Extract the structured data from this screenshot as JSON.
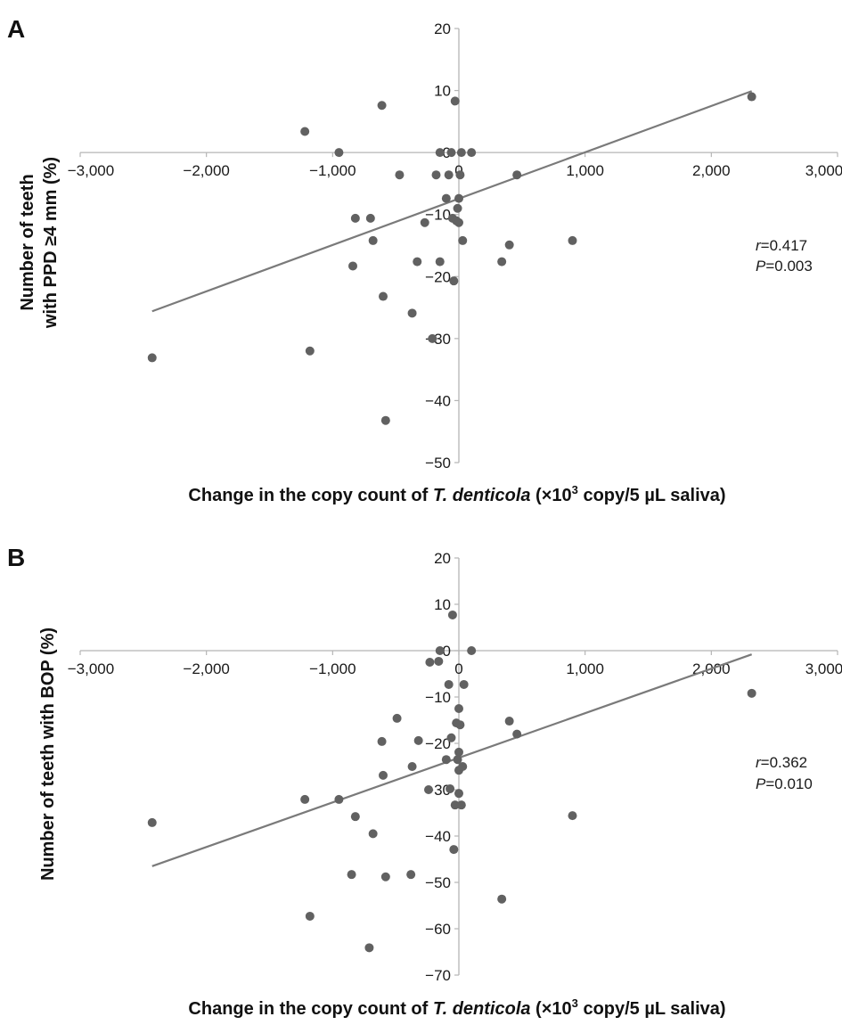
{
  "chart_data": [
    {
      "type": "scatter",
      "panel": "A",
      "xlabel_parts": [
        "Change in the copy count of ",
        "T. denticola",
        " (×10",
        "3",
        " copy/5 µL saliva)"
      ],
      "ylabel_lines": [
        "Number of teeth",
        "with PPD ≥4 mm (%)"
      ],
      "xlim": [
        -3000,
        3000
      ],
      "ylim": [
        -50,
        20
      ],
      "x_ticks": [
        -3000,
        -2000,
        -1000,
        0,
        1000,
        2000,
        3000
      ],
      "x_tick_labels": [
        "−3,000",
        "−2,000",
        "−1,000",
        "0",
        "1,000",
        "2,000",
        "3,000"
      ],
      "y_ticks": [
        20,
        10,
        0,
        -10,
        -20,
        -30,
        -40,
        -50
      ],
      "y_tick_labels": [
        "20",
        "10",
        "0",
        "−10",
        "−20",
        "−30",
        "−40",
        "−50"
      ],
      "grid": false,
      "annotation": {
        "r_label": "r",
        "r_value": "=0.417",
        "p_label": "P",
        "p_value": "=0.003"
      },
      "trendline": {
        "x": [
          -2430,
          2320
        ],
        "y": [
          -25.6,
          9.9
        ]
      },
      "points": [
        {
          "x": -2430,
          "y": -33.1
        },
        {
          "x": -1220,
          "y": 3.4
        },
        {
          "x": -1180,
          "y": -32.0
        },
        {
          "x": -950,
          "y": 0.0
        },
        {
          "x": -840,
          "y": -18.3
        },
        {
          "x": -820,
          "y": -10.6
        },
        {
          "x": -700,
          "y": -10.6
        },
        {
          "x": -680,
          "y": -14.2
        },
        {
          "x": -610,
          "y": 7.6
        },
        {
          "x": -600,
          "y": -23.2
        },
        {
          "x": -580,
          "y": -43.2
        },
        {
          "x": -470,
          "y": -3.6
        },
        {
          "x": -370,
          "y": -25.9
        },
        {
          "x": -330,
          "y": -17.6
        },
        {
          "x": -270,
          "y": -11.3
        },
        {
          "x": -210,
          "y": -30.0
        },
        {
          "x": -180,
          "y": -3.6
        },
        {
          "x": -150,
          "y": -17.6
        },
        {
          "x": -150,
          "y": 0.0
        },
        {
          "x": -100,
          "y": -7.4
        },
        {
          "x": -80,
          "y": -3.6
        },
        {
          "x": -60,
          "y": 0.0
        },
        {
          "x": -50,
          "y": -10.6
        },
        {
          "x": -40,
          "y": -20.7
        },
        {
          "x": -30,
          "y": 8.3
        },
        {
          "x": -20,
          "y": -11.0
        },
        {
          "x": -10,
          "y": -9.0
        },
        {
          "x": 0,
          "y": -7.4
        },
        {
          "x": 0,
          "y": -11.3
        },
        {
          "x": 10,
          "y": -3.6
        },
        {
          "x": 20,
          "y": 0.0
        },
        {
          "x": 30,
          "y": -14.2
        },
        {
          "x": 100,
          "y": 0.0
        },
        {
          "x": 340,
          "y": -17.6
        },
        {
          "x": 400,
          "y": -14.9
        },
        {
          "x": 460,
          "y": -3.6
        },
        {
          "x": 900,
          "y": -14.2
        },
        {
          "x": 2320,
          "y": 9.0
        }
      ]
    },
    {
      "type": "scatter",
      "panel": "B",
      "xlabel_parts": [
        "Change in the copy count of ",
        "T. denticola",
        " (×10",
        "3",
        " copy/5 µL saliva)"
      ],
      "ylabel_lines": [
        "Number of teeth with BOP (%)"
      ],
      "xlim": [
        -3000,
        3000
      ],
      "ylim": [
        -70,
        20
      ],
      "x_ticks": [
        -3000,
        -2000,
        -1000,
        0,
        1000,
        2000,
        3000
      ],
      "x_tick_labels": [
        "−3,000",
        "−2,000",
        "−1,000",
        "0",
        "1,000",
        "2,000",
        "3,000"
      ],
      "y_ticks": [
        20,
        10,
        0,
        -10,
        -20,
        -30,
        -40,
        -50,
        -60,
        -70
      ],
      "y_tick_labels": [
        "20",
        "10",
        "0",
        "−10",
        "−20",
        "−30",
        "−40",
        "−50",
        "−60",
        "−70"
      ],
      "grid": false,
      "annotation": {
        "r_label": "r",
        "r_value": "=0.362",
        "p_label": "P",
        "p_value": "=0.010"
      },
      "trendline": {
        "x": [
          -2430,
          2320
        ],
        "y": [
          -46.5,
          -0.8
        ]
      },
      "points": [
        {
          "x": -2430,
          "y": -37.1
        },
        {
          "x": -1220,
          "y": -32.1
        },
        {
          "x": -1180,
          "y": -57.3
        },
        {
          "x": -950,
          "y": -32.1
        },
        {
          "x": -850,
          "y": -48.3
        },
        {
          "x": -820,
          "y": -35.8
        },
        {
          "x": -710,
          "y": -64.1
        },
        {
          "x": -680,
          "y": -39.5
        },
        {
          "x": -610,
          "y": -19.6
        },
        {
          "x": -600,
          "y": -26.9
        },
        {
          "x": -580,
          "y": -48.8
        },
        {
          "x": -490,
          "y": -14.6
        },
        {
          "x": -380,
          "y": -48.3
        },
        {
          "x": -370,
          "y": -25.0
        },
        {
          "x": -320,
          "y": -19.4
        },
        {
          "x": -240,
          "y": -30.0
        },
        {
          "x": -230,
          "y": -2.5
        },
        {
          "x": -160,
          "y": -2.3
        },
        {
          "x": -150,
          "y": 0.0
        },
        {
          "x": -100,
          "y": -23.5
        },
        {
          "x": -80,
          "y": -7.3
        },
        {
          "x": -70,
          "y": -29.8
        },
        {
          "x": -60,
          "y": -18.8
        },
        {
          "x": -50,
          "y": 7.7
        },
        {
          "x": -40,
          "y": -42.9
        },
        {
          "x": -30,
          "y": -33.3
        },
        {
          "x": -20,
          "y": -15.6
        },
        {
          "x": -10,
          "y": -23.5
        },
        {
          "x": 0,
          "y": -12.5
        },
        {
          "x": 0,
          "y": -21.9
        },
        {
          "x": 0,
          "y": -30.8
        },
        {
          "x": 0,
          "y": -25.8
        },
        {
          "x": 10,
          "y": -16.0
        },
        {
          "x": 20,
          "y": -33.3
        },
        {
          "x": 30,
          "y": -25.0
        },
        {
          "x": 40,
          "y": -7.3
        },
        {
          "x": 100,
          "y": 0.0
        },
        {
          "x": 340,
          "y": -53.6
        },
        {
          "x": 400,
          "y": -15.2
        },
        {
          "x": 460,
          "y": -18.0
        },
        {
          "x": 900,
          "y": -35.6
        },
        {
          "x": 2320,
          "y": -9.2
        }
      ]
    }
  ],
  "colors": {
    "marker": "#616161",
    "trendline": "#7a7a7a",
    "axis": "#b5b5b5",
    "text": "#1a1a1a"
  }
}
